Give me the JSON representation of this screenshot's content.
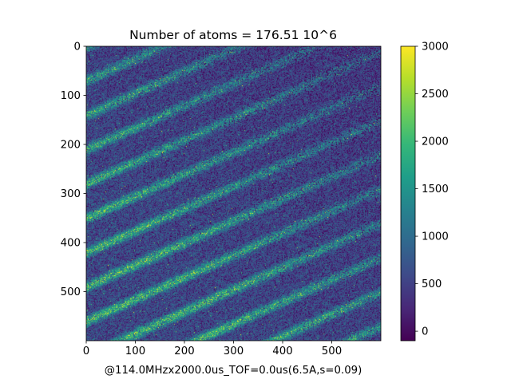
{
  "chart_data": {
    "type": "heatmap",
    "title": "Number of atoms = 176.51 10^6",
    "xlabel": "@114.0MHzx2000.0us_TOF=0.0us(6.5A,s=0.09)",
    "ylabel": "",
    "xlim": [
      0,
      600
    ],
    "ylim": [
      600,
      0
    ],
    "x_ticks": [
      "0",
      "100",
      "200",
      "300",
      "400",
      "500"
    ],
    "y_ticks": [
      "0",
      "100",
      "200",
      "300",
      "400",
      "500"
    ],
    "colormap": "viridis",
    "color_range": [
      -100,
      3000
    ],
    "colorbar_ticks": [
      "0",
      "500",
      "1000",
      "1500",
      "2000",
      "2500",
      "3000"
    ],
    "pattern": {
      "description_values": {
        "background_mean": 550,
        "stripe_peak_mean_bottom_left": 1800,
        "stripe_peak_mean_top_right": 700,
        "stripe_period_px": 70,
        "noise_std": 500
      }
    }
  },
  "colors": {
    "viridis": [
      "#440154",
      "#482878",
      "#3e4a89",
      "#31688e",
      "#26828e",
      "#1f9e89",
      "#35b779",
      "#6ece58",
      "#b5de2b",
      "#fde725"
    ]
  }
}
